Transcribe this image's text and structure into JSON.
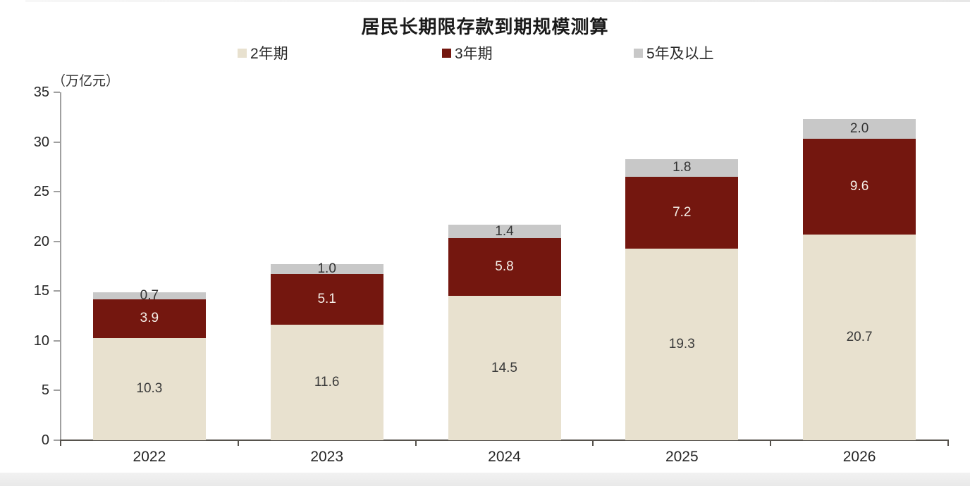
{
  "title": "居民长期限存款到期规模测算",
  "chart_data": {
    "type": "bar",
    "stacked": true,
    "title": "居民长期限存款到期规模测算",
    "ylabel": "（万亿元）",
    "xlabel": "",
    "categories": [
      "2022",
      "2023",
      "2024",
      "2025",
      "2026"
    ],
    "series": [
      {
        "name": "2年期",
        "color": "#e8e1cf",
        "label_color": "#3a3a3a",
        "values": [
          10.3,
          11.6,
          14.5,
          19.3,
          20.7
        ]
      },
      {
        "name": "3年期",
        "color": "#74170f",
        "label_color": "#f5efe8",
        "values": [
          3.9,
          5.1,
          5.8,
          7.2,
          9.6
        ]
      },
      {
        "name": "5年及以上",
        "color": "#c8c8c8",
        "label_color": "#333333",
        "values": [
          0.7,
          1.0,
          1.4,
          1.8,
          2.0
        ]
      }
    ],
    "totals": [
      14.9,
      17.7,
      21.7,
      28.3,
      32.3
    ],
    "ylim": [
      0,
      35
    ],
    "yticks": [
      0,
      5,
      10,
      15,
      20,
      25,
      30,
      35
    ],
    "legend_position": "top",
    "grid": false,
    "colors": {
      "axis_line": "#a0a0a0",
      "baseline": "#56524c",
      "text": "#262626"
    }
  }
}
